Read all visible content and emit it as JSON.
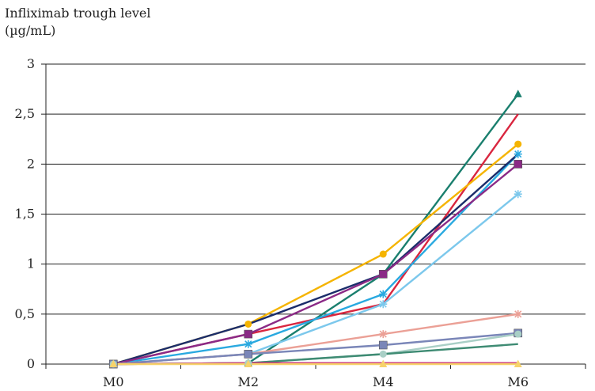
{
  "chart_data": {
    "type": "line",
    "ylabel_line1": "Infliximab trough level",
    "ylabel_line2": "(µg/mL)",
    "xlabel": "",
    "categories": [
      "M0",
      "M2",
      "M4",
      "M6"
    ],
    "y_ticks": [
      "0",
      "0,5",
      "1",
      "1,5",
      "2",
      "2,5",
      "3"
    ],
    "ylim": [
      0,
      3
    ],
    "grid": "horizontal",
    "series": [
      {
        "values": [
          0,
          0.01,
          0.9,
          2.7
        ],
        "color": "#1a7f6e",
        "marker": "triangle"
      },
      {
        "values": [
          0,
          0.3,
          0.6,
          2.5
        ],
        "color": "#d9263f",
        "marker": "none"
      },
      {
        "values": [
          0,
          0.4,
          1.1,
          2.2
        ],
        "color": "#f5b400",
        "marker": "circle"
      },
      {
        "values": [
          0,
          0.2,
          0.7,
          2.1
        ],
        "color": "#29a9e0",
        "marker": "star"
      },
      {
        "values": [
          0,
          0.4,
          0.9,
          2.1
        ],
        "color": "#1b2d6b",
        "marker": "none"
      },
      {
        "values": [
          0,
          0.3,
          0.9,
          2.0
        ],
        "color": "#8b2a86",
        "marker": "square"
      },
      {
        "values": [
          0,
          0.1,
          0.6,
          1.7
        ],
        "color": "#7cc8ec",
        "marker": "star"
      },
      {
        "values": [
          0,
          0.1,
          0.3,
          0.5
        ],
        "color": "#eba096",
        "marker": "star"
      },
      {
        "values": [
          0,
          0.1,
          0.19,
          0.31
        ],
        "color": "#7a86b8",
        "marker": "square"
      },
      {
        "values": [
          0,
          0.01,
          0.1,
          0.3
        ],
        "color": "#a9cfc6",
        "marker": "circle"
      },
      {
        "values": [
          0,
          0.01,
          0.1,
          0.2
        ],
        "color": "#3e8b73",
        "marker": "none"
      },
      {
        "values": [
          0,
          0.01,
          0.01,
          0.01
        ],
        "color": "#c7287e",
        "marker": "none"
      },
      {
        "values": [
          0,
          0,
          0,
          0
        ],
        "color": "#f7d36b",
        "marker": "triangle"
      }
    ]
  }
}
